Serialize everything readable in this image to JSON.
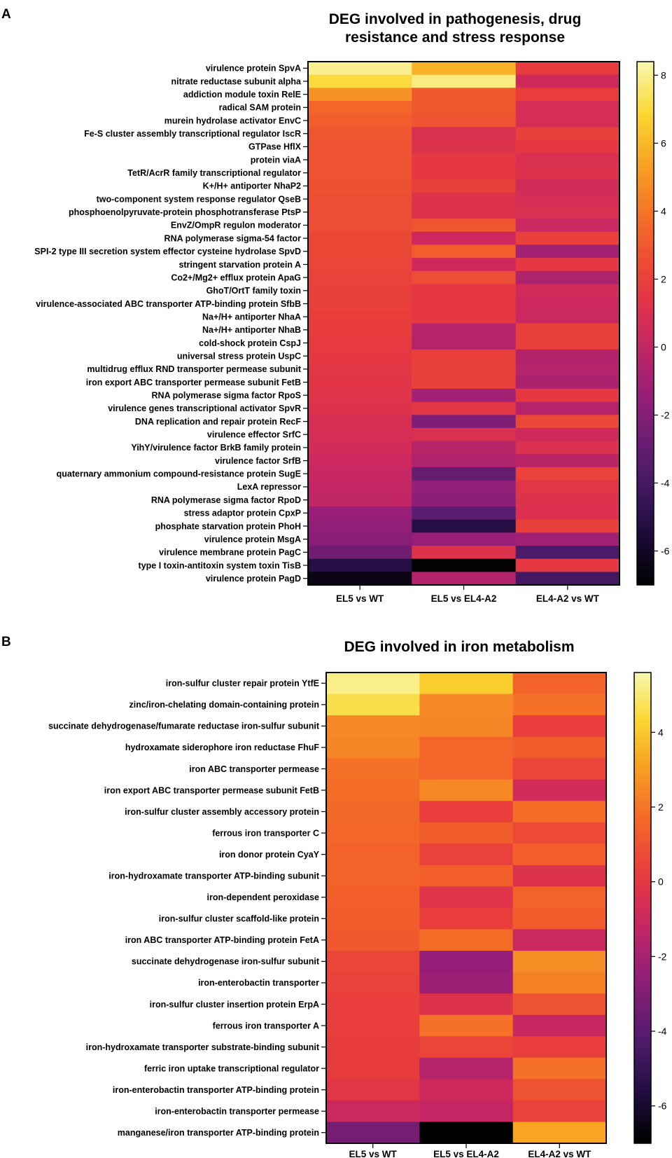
{
  "chart_data": [
    {
      "type": "heatmap",
      "panel": "A",
      "title": [
        "DEG involved in pathogenesis, drug",
        "resistance and stress response"
      ],
      "columns": [
        "EL5 vs WT",
        "EL5 vs EL4-A2",
        "EL4-A2 vs WT"
      ],
      "rows": [
        "virulence protein SpvA",
        "nitrate reductase subunit alpha",
        "addiction module toxin RelE",
        "radical SAM protein",
        "murein hydrolase activator EnvC",
        "Fe-S cluster assembly transcriptional regulator IscR",
        "GTPase HflX",
        "protein viaA",
        "TetR/AcrR family transcriptional regulator",
        "K+/H+ antiporter NhaP2",
        "two-component system response regulator QseB",
        "phosphoenolpyruvate-protein phosphotransferase PtsP",
        "EnvZ/OmpR regulon moderator",
        "RNA polymerase sigma-54 factor",
        "SPI-2 type III secretion system effector cysteine hydrolase SpvD",
        "stringent starvation protein A",
        "Co2+/Mg2+ efflux protein ApaG",
        "GhoT/OrtT family toxin",
        "virulence-associated ABC transporter ATP-binding protein SfbB",
        "Na+/H+ antiporter NhaA",
        "Na+/H+ antiporter NhaB",
        "cold-shock protein CspJ",
        "universal stress protein UspC",
        "multidrug efflux RND transporter permease subunit",
        "iron export ABC transporter permease subunit FetB",
        "RNA polymerase sigma factor RpoS",
        "virulence genes transcriptional activator SpvR",
        "DNA replication and repair protein RecF",
        "virulence effector SrfC",
        "YihY/virulence factor BrkB family protein",
        "virulence factor SrfB",
        "quaternary ammonium compound-resistance protein SugE",
        "LexA repressor",
        "RNA polymerase sigma factor RpoD",
        "stress adaptor protein CpxP",
        "phosphate starvation protein PhoH",
        "virulence protein MsgA",
        "virulence membrane protein PagC",
        "type I toxin-antitoxin system toxin TisB",
        "virulence protein PagD"
      ],
      "values": [
        [
          8,
          5.8,
          1.8
        ],
        [
          7,
          7.8,
          0.5
        ],
        [
          4.9,
          3.0,
          1.9
        ],
        [
          3.5,
          3.0,
          0.8
        ],
        [
          3.2,
          2.8,
          0.8
        ],
        [
          2.9,
          1.0,
          2.0
        ],
        [
          2.8,
          1.2,
          1.6
        ],
        [
          2.8,
          1.6,
          1.0
        ],
        [
          2.8,
          1.6,
          1.2
        ],
        [
          2.7,
          2.0,
          0.6
        ],
        [
          2.6,
          1.2,
          0.8
        ],
        [
          2.5,
          1.2,
          1.0
        ],
        [
          2.5,
          2.9,
          0.3
        ],
        [
          2.3,
          0.4,
          2.0
        ],
        [
          2.3,
          3.2,
          -1.0
        ],
        [
          2.2,
          0.5,
          1.6
        ],
        [
          2.1,
          2.5,
          -0.6
        ],
        [
          2.0,
          1.6,
          0.6
        ],
        [
          2.0,
          1.6,
          0.4
        ],
        [
          1.9,
          1.6,
          0.3
        ],
        [
          1.8,
          -0.4,
          2.0
        ],
        [
          1.7,
          -0.4,
          2.0
        ],
        [
          1.6,
          2.0,
          -0.5
        ],
        [
          1.5,
          2.0,
          -0.4
        ],
        [
          1.4,
          2.0,
          -0.7
        ],
        [
          1.3,
          -1.1,
          1.6
        ],
        [
          1.2,
          1.5,
          -0.4
        ],
        [
          0.9,
          -2.2,
          2.3
        ],
        [
          0.8,
          1.0,
          0.5
        ],
        [
          0.7,
          -0.3,
          1.1
        ],
        [
          0.4,
          -0.6,
          -0.2
        ],
        [
          0.2,
          -3.0,
          2.1
        ],
        [
          0.1,
          -1.6,
          1.5
        ],
        [
          0.0,
          -1.8,
          1.2
        ],
        [
          -1.4,
          -3.3,
          1.1
        ],
        [
          -1.6,
          -5.2,
          2.0
        ],
        [
          -1.9,
          -1.4,
          -1.1
        ],
        [
          -2.6,
          1.2,
          -3.8
        ],
        [
          -5.2,
          -6.9,
          1.6
        ],
        [
          -6.5,
          -0.5,
          -4.1
        ]
      ],
      "colorbar": {
        "min": -7,
        "max": 8.4,
        "ticks": [
          8,
          6,
          4,
          2,
          0,
          -2,
          -4,
          -6
        ]
      }
    },
    {
      "type": "heatmap",
      "panel": "B",
      "title": [
        "DEG involved in iron metabolism"
      ],
      "columns": [
        "EL5 vs WT",
        "EL5 vs EL4-A2",
        "EL4-A2 vs WT"
      ],
      "rows": [
        "iron-sulfur cluster repair protein YtfE",
        "zinc/iron-chelating domain-containing protein",
        "succinate dehydrogenase/fumarate reductase iron-sulfur subunit",
        "hydroxamate siderophore iron reductase FhuF",
        "iron ABC transporter permease",
        "iron export ABC transporter permease subunit FetB",
        "iron-sulfur cluster assembly accessory protein",
        "ferrous iron transporter C",
        "iron donor protein CyaY",
        "iron-hydroxamate transporter ATP-binding subunit",
        "iron-dependent peroxidase",
        "iron-sulfur cluster scaffold-like protein",
        "iron ABC transporter ATP-binding protein FetA",
        "succinate dehydrogenase iron-sulfur subunit",
        "iron-enterobactin transporter",
        "iron-sulfur cluster insertion protein ErpA",
        "ferrous iron transporter A",
        "iron-hydroxamate transporter substrate-binding subunit",
        "ferric iron uptake transcriptional regulator",
        "iron-enterobactin transporter ATP-binding protein",
        "iron-enterobactin transporter permease",
        "manganese/iron transporter ATP-binding protein"
      ],
      "values": [
        [
          5.2,
          4.1,
          1.5
        ],
        [
          4.6,
          2.5,
          1.9
        ],
        [
          2.5,
          2.4,
          0.3
        ],
        [
          2.4,
          1.6,
          1.3
        ],
        [
          1.9,
          1.6,
          0.5
        ],
        [
          1.8,
          2.5,
          -0.8
        ],
        [
          1.7,
          0.3,
          1.8
        ],
        [
          1.6,
          1.3,
          0.7
        ],
        [
          1.5,
          0.4,
          1.4
        ],
        [
          1.5,
          1.4,
          -0.3
        ],
        [
          1.4,
          -0.2,
          1.5
        ],
        [
          1.3,
          0.3,
          1.3
        ],
        [
          1.2,
          1.8,
          -1.0
        ],
        [
          0.5,
          -2.5,
          2.6
        ],
        [
          0.4,
          -2.3,
          2.3
        ],
        [
          0.3,
          -0.3,
          1.0
        ],
        [
          0.3,
          1.9,
          -1.1
        ],
        [
          0.2,
          0.5,
          0.3
        ],
        [
          0.2,
          -1.6,
          1.9
        ],
        [
          -0.1,
          -0.9,
          1.0
        ],
        [
          -1.0,
          -1.2,
          0.4
        ],
        [
          -3.3,
          -7.0,
          3.2
        ]
      ],
      "colorbar": {
        "min": -7,
        "max": 5.6,
        "ticks": [
          4,
          2,
          0,
          -2,
          -4,
          -6
        ]
      }
    }
  ]
}
